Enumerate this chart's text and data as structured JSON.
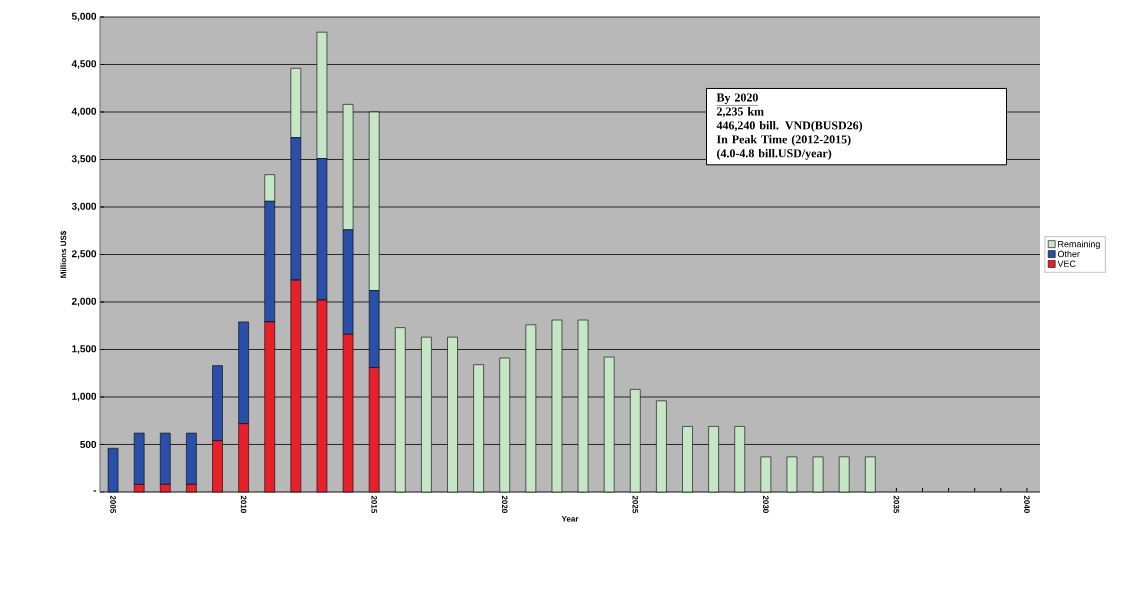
{
  "chart_data": {
    "type": "bar",
    "stacked": true,
    "xlabel": "Year",
    "ylabel": "Millions US$",
    "categories": [
      "2005",
      null,
      null,
      null,
      null,
      "2010",
      null,
      null,
      null,
      null,
      "2015",
      null,
      null,
      null,
      null,
      "2020",
      null,
      null,
      null,
      null,
      "2025",
      null,
      null,
      null,
      null,
      "2030",
      null,
      null,
      null,
      null,
      "2035",
      null,
      null,
      null,
      null,
      "2040"
    ],
    "series": [
      {
        "name": "VEC",
        "color": "#e8202a",
        "values": [
          null,
          80,
          80,
          80,
          540,
          720,
          1790,
          2230,
          2020,
          1660,
          1310,
          null,
          null,
          null,
          null,
          null,
          null,
          null,
          null,
          null,
          null,
          null,
          null,
          null,
          null,
          null,
          null,
          null,
          null,
          null,
          null,
          null,
          null,
          null,
          null,
          null
        ]
      },
      {
        "name": "Other",
        "color": "#2a4fa8",
        "values": [
          460,
          540,
          540,
          540,
          790,
          1070,
          1270,
          1500,
          1490,
          1100,
          810,
          null,
          null,
          null,
          null,
          null,
          null,
          null,
          null,
          null,
          null,
          null,
          null,
          null,
          null,
          null,
          null,
          null,
          null,
          null,
          null,
          null,
          null,
          null,
          null,
          null
        ]
      },
      {
        "name": "Remaining",
        "color": "#c6e6c6",
        "values": [
          null,
          null,
          null,
          null,
          null,
          null,
          280,
          730,
          1330,
          1320,
          1880,
          1730,
          1630,
          1630,
          1340,
          1410,
          1760,
          1810,
          1810,
          1420,
          1080,
          960,
          690,
          690,
          690,
          370,
          370,
          370,
          370,
          370,
          null,
          null,
          null,
          null,
          null,
          null
        ]
      }
    ],
    "ylim": [
      0,
      5000
    ],
    "yticks": [
      {
        "value": 0,
        "label": "-"
      },
      500,
      {
        "value": 1000,
        "label": "1,000"
      },
      {
        "value": 1500,
        "label": "1,500"
      },
      {
        "value": 2000,
        "label": "2,000"
      },
      {
        "value": 2500,
        "label": "2,500"
      },
      {
        "value": 3000,
        "label": "3,000"
      },
      {
        "value": 3500,
        "label": "3,500"
      },
      {
        "value": 4000,
        "label": "4,000"
      },
      {
        "value": 4500,
        "label": "4,500"
      },
      {
        "value": 5000,
        "label": "5,000"
      }
    ],
    "grid": "y",
    "legend": "right",
    "annotations": [
      "By 2020",
      "2,235 km",
      "446,240 bill. VND(BUSD26)",
      "In Peak Time (2012-2015)",
      "(4.0-4.8 bill.USD/year)"
    ]
  }
}
